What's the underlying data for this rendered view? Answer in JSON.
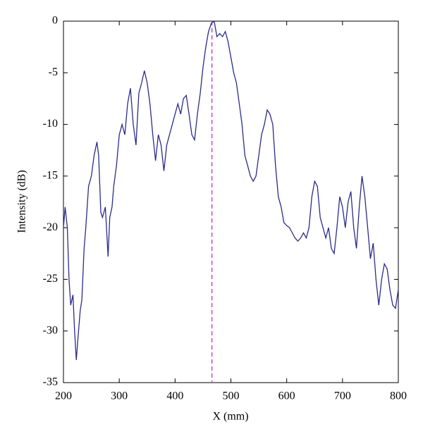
{
  "chart_data": {
    "type": "line",
    "xlabel": "X (mm)",
    "ylabel": "Intensity (dB)",
    "x": [
      200,
      203,
      207,
      210,
      213,
      217,
      220,
      223,
      227,
      230,
      233,
      237,
      240,
      245,
      250,
      255,
      260,
      263,
      267,
      270,
      275,
      280,
      283,
      287,
      290,
      295,
      300,
      305,
      310,
      315,
      320,
      325,
      330,
      335,
      340,
      345,
      350,
      355,
      360,
      365,
      370,
      375,
      380,
      385,
      390,
      395,
      400,
      405,
      410,
      415,
      420,
      425,
      430,
      435,
      440,
      445,
      450,
      455,
      460,
      465,
      470,
      475,
      480,
      485,
      490,
      495,
      500,
      505,
      510,
      515,
      520,
      525,
      530,
      535,
      540,
      545,
      550,
      555,
      560,
      565,
      570,
      575,
      580,
      585,
      590,
      595,
      600,
      605,
      610,
      615,
      620,
      625,
      630,
      635,
      640,
      645,
      650,
      655,
      660,
      665,
      670,
      675,
      680,
      685,
      690,
      695,
      700,
      705,
      710,
      715,
      720,
      725,
      730,
      735,
      740,
      745,
      750,
      755,
      760,
      765,
      770,
      775,
      780,
      785,
      790,
      795,
      800
    ],
    "series": [
      {
        "color": "#2b2b8c",
        "values": [
          -20,
          -18,
          -20,
          -25,
          -27.5,
          -26.5,
          -30,
          -32.8,
          -30,
          -28,
          -27,
          -22,
          -20,
          -16,
          -15,
          -13,
          -11.7,
          -13,
          -18.5,
          -19,
          -18,
          -22.8,
          -19,
          -18,
          -16,
          -14,
          -11,
          -10,
          -11,
          -8,
          -6.5,
          -10,
          -12,
          -7,
          -6,
          -4.8,
          -6,
          -8,
          -11,
          -13.5,
          -11,
          -12,
          -14.5,
          -12,
          -11,
          -10,
          -9,
          -8,
          -9,
          -7.5,
          -7.2,
          -9,
          -11,
          -11.5,
          -9,
          -7,
          -4.5,
          -2.5,
          -1,
          -0.2,
          0,
          -1.5,
          -1.2,
          -1.5,
          -1,
          -2,
          -3.5,
          -5,
          -6,
          -8,
          -10,
          -13,
          -14,
          -15,
          -15.5,
          -15,
          -13,
          -11,
          -10,
          -8.6,
          -9,
          -10,
          -14,
          -17,
          -18,
          -19.5,
          -19.8,
          -20,
          -20.5,
          -21,
          -21.3,
          -21,
          -20.5,
          -21,
          -20,
          -17,
          -15.5,
          -16,
          -19,
          -20,
          -21,
          -20,
          -22,
          -22.5,
          -20,
          -17,
          -18,
          -20,
          -17.5,
          -16.5,
          -20,
          -22,
          -18,
          -15,
          -17,
          -20,
          -23,
          -21.5,
          -25,
          -27.5,
          -25,
          -23.5,
          -24,
          -26,
          -27.5,
          -27.8,
          -26
        ]
      }
    ],
    "vline": {
      "x": 466,
      "color": "#cc44cc"
    },
    "xlim": [
      200,
      800
    ],
    "xticks": [
      200,
      300,
      400,
      500,
      600,
      700,
      800
    ],
    "ylim": [
      -35,
      0
    ],
    "yticks": [
      -35,
      -30,
      -25,
      -20,
      -15,
      -10,
      -5,
      0
    ]
  }
}
